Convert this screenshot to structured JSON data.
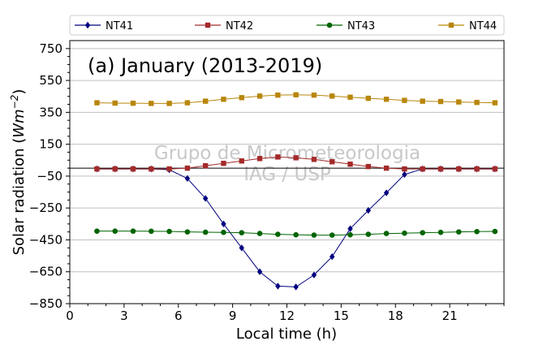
{
  "chart_data": {
    "type": "line",
    "title": "",
    "annotation": "(a) January (2013-2019)",
    "watermark": [
      "Grupo de Micrometeorologia",
      "IAG / USP"
    ],
    "xlabel": "Local time (h)",
    "ylabel": "Solar radiation (Wm⁻²)",
    "ylabel_main": "Solar radiation (",
    "ylabel_unit": "Wm",
    "ylabel_exp": "−2",
    "ylabel_close": ")",
    "xlim": [
      0,
      24
    ],
    "ylim": [
      -850,
      800
    ],
    "xticks": [
      0,
      3,
      6,
      9,
      12,
      15,
      18,
      21
    ],
    "yticks": [
      -850,
      -650,
      -450,
      -250,
      -50,
      150,
      350,
      550,
      750
    ],
    "grid": "horizontal",
    "legend_position": "top",
    "x": [
      1.5,
      2.5,
      3.5,
      4.5,
      5.5,
      6.5,
      7.5,
      8.5,
      9.5,
      10.5,
      11.5,
      12.5,
      13.5,
      14.5,
      15.5,
      16.5,
      17.5,
      18.5,
      19.5,
      20.5,
      21.5,
      22.5,
      23.5
    ],
    "series": [
      {
        "name": "NT41",
        "color": "#000080",
        "marker": "diamond",
        "values": [
          -5,
          -5,
          -5,
          -5,
          -10,
          -65,
          -190,
          -350,
          -500,
          -650,
          -740,
          -745,
          -670,
          -555,
          -380,
          -265,
          -155,
          -40,
          -5,
          -5,
          -5,
          -5,
          -5
        ]
      },
      {
        "name": "NT42",
        "color": "#a52a2a",
        "marker": "square",
        "values": [
          -5,
          -5,
          -5,
          -5,
          -5,
          0,
          15,
          30,
          45,
          60,
          70,
          65,
          55,
          40,
          25,
          10,
          0,
          -5,
          -5,
          -5,
          -5,
          -5,
          -5
        ]
      },
      {
        "name": "NT43",
        "color": "#006400",
        "marker": "circle",
        "values": [
          -395,
          -395,
          -395,
          -396,
          -397,
          -400,
          -402,
          -403,
          -405,
          -410,
          -415,
          -418,
          -420,
          -420,
          -418,
          -415,
          -410,
          -408,
          -405,
          -403,
          -400,
          -398,
          -397
        ]
      },
      {
        "name": "NT44",
        "color": "#b8860b",
        "marker": "square",
        "values": [
          410,
          408,
          407,
          406,
          406,
          410,
          420,
          432,
          442,
          452,
          458,
          460,
          458,
          452,
          445,
          438,
          432,
          425,
          420,
          418,
          415,
          412,
          410
        ]
      }
    ]
  }
}
